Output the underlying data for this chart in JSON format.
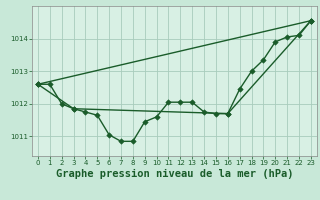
{
  "title": "Graphe pression niveau de la mer (hPa)",
  "background_color": "#c8e8d8",
  "plot_bg_color": "#d8f0e4",
  "grid_color": "#a8ccbc",
  "line_color": "#1a5c2a",
  "xlim": [
    -0.5,
    23.5
  ],
  "ylim": [
    1010.4,
    1015.0
  ],
  "yticks": [
    1011,
    1012,
    1013,
    1014
  ],
  "xticks": [
    0,
    1,
    2,
    3,
    4,
    5,
    6,
    7,
    8,
    9,
    10,
    11,
    12,
    13,
    14,
    15,
    16,
    17,
    18,
    19,
    20,
    21,
    22,
    23
  ],
  "series1_x": [
    0,
    1,
    2,
    3,
    4,
    5,
    6,
    7,
    8,
    9,
    10,
    11,
    12,
    13,
    14,
    15,
    16,
    17,
    18,
    19,
    20,
    21,
    22,
    23
  ],
  "series1_y": [
    1012.6,
    1012.6,
    1012.0,
    1011.85,
    1011.75,
    1011.65,
    1011.05,
    1010.85,
    1010.85,
    1011.45,
    1011.6,
    1012.05,
    1012.05,
    1012.05,
    1011.75,
    1011.7,
    1011.7,
    1012.45,
    1013.0,
    1013.35,
    1013.9,
    1014.05,
    1014.1,
    1014.55
  ],
  "series2_x": [
    0,
    23
  ],
  "series2_y": [
    1012.6,
    1014.55
  ],
  "series3_x": [
    0,
    3,
    16,
    23
  ],
  "series3_y": [
    1012.6,
    1011.85,
    1011.7,
    1014.55
  ],
  "marker_size": 2.8,
  "line_width": 1.0,
  "title_fontsize": 7.5,
  "tick_fontsize": 5.0
}
